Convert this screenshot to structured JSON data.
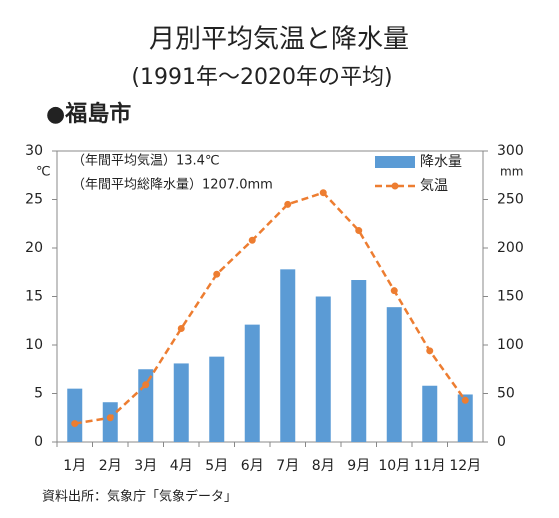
{
  "chart_data": {
    "type": "bar-line",
    "title": "月別平均気温と降水量",
    "subtitle": "(1991年～2020年の平均)",
    "location": "●福島市",
    "annotations": [
      "（年間平均気温）13.4℃",
      "（年間平均総降水量）1207.0mm"
    ],
    "y_label": "℃",
    "y2_label": "mm",
    "source": "資料出所：気象庁「気象データ」",
    "categories": [
      "1月",
      "2月",
      "3月",
      "4月",
      "5月",
      "6月",
      "7月",
      "8月",
      "9月",
      "10月",
      "11月",
      "12月"
    ],
    "series": [
      {
        "name": "降水量",
        "type": "bar",
        "axis": "y2",
        "color": "#5b9bd5",
        "values": [
          55,
          41,
          75,
          81,
          88,
          121,
          178,
          150,
          167,
          139,
          58,
          49
        ]
      },
      {
        "name": "気温",
        "type": "line",
        "axis": "y",
        "color": "#ed7d31",
        "values": [
          1.9,
          2.5,
          5.9,
          11.7,
          17.3,
          20.8,
          24.5,
          25.7,
          21.8,
          15.6,
          9.4,
          4.3
        ]
      }
    ],
    "ylim": [
      0,
      30
    ],
    "yticks": [
      0,
      5,
      10,
      15,
      20,
      25,
      30
    ],
    "y2lim": [
      0,
      300
    ],
    "y2ticks": [
      0,
      50,
      100,
      150,
      200,
      250,
      300
    ],
    "grid": false
  }
}
